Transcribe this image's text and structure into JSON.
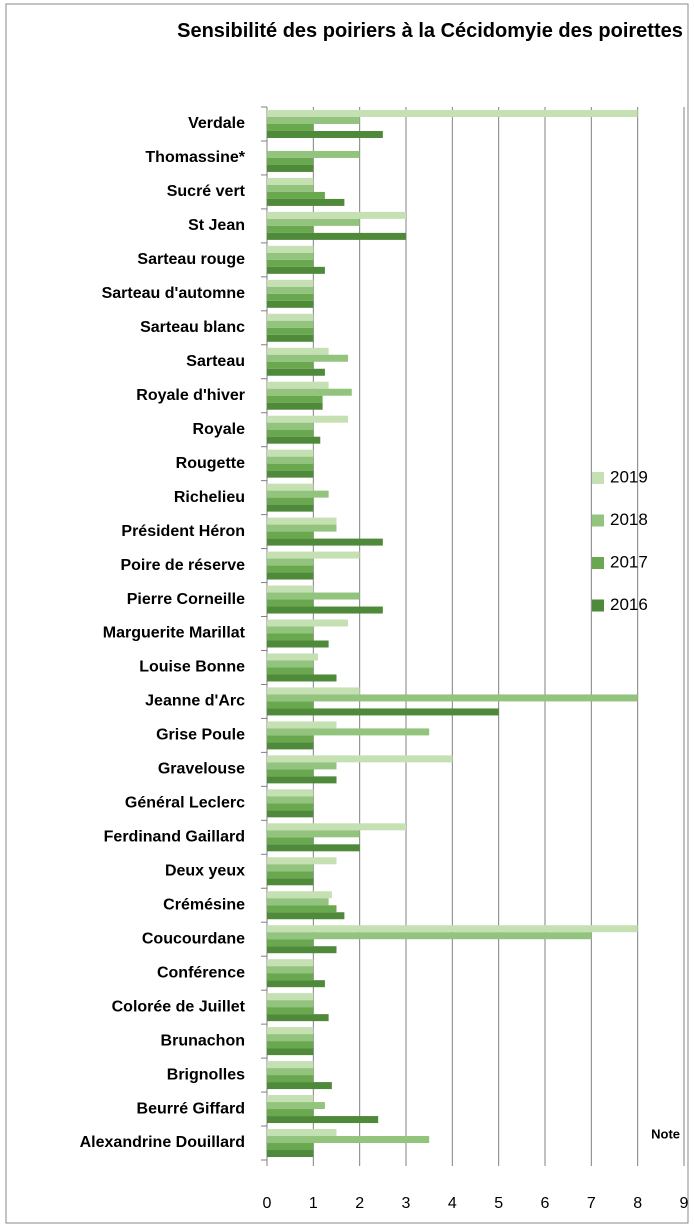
{
  "chart_data": {
    "type": "bar",
    "orientation": "horizontal",
    "title": "Sensibilité des poiriers à la Cécidomyie des poirettes",
    "x_label": "Note",
    "categories": [
      "Verdale",
      "Thomassine*",
      "Sucré vert",
      "St Jean",
      "Sarteau rouge",
      "Sarteau d'automne",
      "Sarteau blanc",
      "Sarteau",
      "Royale d'hiver",
      "Royale",
      "Rougette",
      "Richelieu",
      "Président  Héron",
      "Poire de réserve",
      "Pierre  Corneille",
      "Marguerite Marillat",
      "Louise Bonne",
      "Jeanne d'Arc",
      "Grise Poule",
      "Gravelouse",
      "Général Leclerc",
      "Ferdinand Gaillard",
      "Deux yeux",
      "Crémésine",
      "Coucourdane",
      "Conférence",
      "Colorée de Juillet",
      "Brunachon",
      "Brignolles",
      "Beurré Giffard",
      "Alexandrine Douillard"
    ],
    "series": [
      {
        "name": "2019",
        "color": "#c5e0b3",
        "values": [
          8,
          null,
          1,
          3,
          1,
          1,
          1,
          1.33,
          1.33,
          1.75,
          1,
          1,
          1.5,
          2,
          1,
          1.75,
          1.1,
          2,
          1.5,
          4,
          1,
          3,
          1.5,
          1.4,
          8,
          1,
          1,
          1,
          1,
          1,
          1.5
        ]
      },
      {
        "name": "2018",
        "color": "#93c47d",
        "values": [
          2,
          2,
          1,
          2,
          1,
          1,
          1,
          1.75,
          1.83,
          1,
          1,
          1.33,
          1.5,
          1,
          2,
          1,
          1,
          8,
          3.5,
          1.5,
          1,
          2,
          1,
          1.33,
          7,
          1,
          1,
          1,
          1,
          1.25,
          3.5
        ]
      },
      {
        "name": "2017",
        "color": "#6aa84f",
        "values": [
          1,
          1,
          1.25,
          1,
          1,
          1,
          1,
          1,
          1.2,
          1,
          1,
          1,
          1,
          1,
          1,
          1,
          1,
          1,
          1,
          1,
          1,
          1,
          1,
          1.5,
          1,
          1,
          1,
          1,
          1,
          1,
          1
        ]
      },
      {
        "name": "2016",
        "color": "#4e8a3a",
        "values": [
          2.5,
          1,
          1.67,
          3,
          1.25,
          1,
          1,
          1.25,
          1.2,
          1.15,
          1,
          1,
          2.5,
          1,
          2.5,
          1.33,
          1.5,
          5,
          1,
          1.5,
          1,
          2,
          1,
          1.67,
          1.5,
          1.25,
          1.33,
          1,
          1.4,
          2.4,
          1
        ]
      }
    ],
    "xlim": [
      0,
      9
    ],
    "xticks": [
      0,
      1,
      2,
      3,
      4,
      5,
      6,
      7,
      8,
      9
    ],
    "grid": true,
    "legend": "right"
  }
}
